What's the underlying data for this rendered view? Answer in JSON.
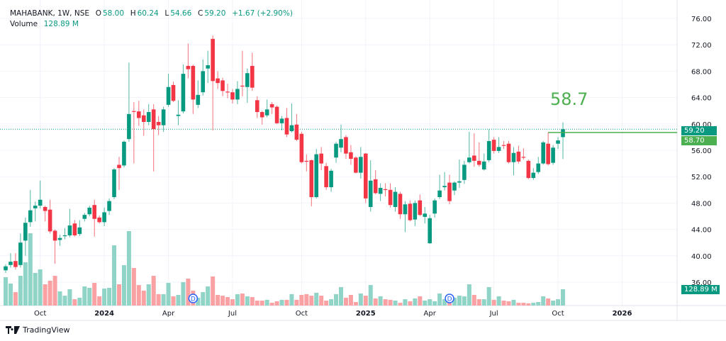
{
  "legend": {
    "symbol": "MAHABANK, 1W, NSE",
    "open_label": "O",
    "open": "58.00",
    "high_label": "H",
    "high": "60.24",
    "low_label": "L",
    "low": "54.66",
    "close_label": "C",
    "close": "59.20",
    "change": "+1.67 (+2.90%)",
    "volume_label": "Volume",
    "volume": "128.89 M"
  },
  "annotation_text": "58.7",
  "price_tags": {
    "last": "59.20",
    "line": "58.70",
    "volume": "128.89 M"
  },
  "dividend_marker": "D",
  "brand": "TradingView",
  "colors": {
    "up": "#089981",
    "down": "#f23645",
    "up_vol": "#8fd4c6",
    "down_vol": "#faa1a4",
    "line": "#4caf50",
    "grid": "#f0f3fa",
    "text": "#131722"
  },
  "chart_data": {
    "type": "candlestick",
    "title": "MAHABANK, 1W, NSE",
    "ylim": [
      36,
      76
    ],
    "yticks": [
      "36.00",
      "40.00",
      "44.00",
      "48.00",
      "52.00",
      "56.00",
      "60.00",
      "64.00",
      "68.00",
      "72.00",
      "76.00"
    ],
    "xticks": [
      {
        "label": "Oct",
        "week": 7,
        "bold": false
      },
      {
        "label": "2024",
        "week": 20,
        "bold": true
      },
      {
        "label": "Apr",
        "week": 33,
        "bold": false
      },
      {
        "label": "Jul",
        "week": 46,
        "bold": false
      },
      {
        "label": "Oct",
        "week": 60,
        "bold": false
      },
      {
        "label": "2025",
        "week": 73,
        "bold": true
      },
      {
        "label": "Apr",
        "week": 86,
        "bold": false
      },
      {
        "label": "Jul",
        "week": 99,
        "bold": false
      },
      {
        "label": "Oct",
        "week": 112,
        "bold": false
      },
      {
        "label": "2026",
        "week": 125,
        "bold": true
      }
    ],
    "total_weeks": 137,
    "horizontal_line": {
      "value": 58.7,
      "from_week": 110
    },
    "last_price": 59.2,
    "dividends_weeks": [
      38,
      90
    ],
    "ohlc": [
      [
        37.8,
        38.7,
        37.4,
        38.4
      ],
      [
        38.6,
        40.4,
        38.2,
        39.1
      ],
      [
        39.2,
        40.4,
        37.9,
        38.3
      ],
      [
        38.6,
        43.4,
        38.2,
        42.0
      ],
      [
        42.3,
        45.8,
        40.0,
        45.0
      ],
      [
        45.1,
        50.0,
        44.4,
        46.9
      ],
      [
        47.2,
        48.2,
        45.2,
        47.6
      ],
      [
        47.6,
        51.4,
        47.2,
        48.5
      ],
      [
        47.4,
        47.6,
        45.2,
        46.8
      ],
      [
        47.0,
        48.5,
        43.4,
        43.7
      ],
      [
        43.8,
        44.0,
        38.8,
        42.3
      ],
      [
        42.4,
        43.2,
        41.5,
        42.7
      ],
      [
        43.1,
        44.2,
        42.5,
        43.1
      ],
      [
        43.1,
        47.1,
        42.8,
        44.6
      ],
      [
        44.9,
        45.4,
        42.9,
        43.1
      ],
      [
        43.3,
        45.4,
        43.0,
        44.3
      ],
      [
        45.6,
        46.5,
        45.2,
        46.2
      ],
      [
        46.3,
        47.6,
        46.0,
        47.3
      ],
      [
        47.7,
        48.5,
        42.9,
        45.6
      ],
      [
        45.8,
        46.1,
        44.9,
        45.1
      ],
      [
        45.1,
        47.3,
        44.5,
        46.6
      ],
      [
        46.8,
        48.7,
        46.2,
        48.3
      ],
      [
        48.9,
        53.3,
        48.6,
        53.1
      ],
      [
        53.8,
        55.0,
        50.0,
        53.3
      ],
      [
        53.7,
        57.5,
        53.4,
        57.3
      ],
      [
        57.7,
        69.3,
        57.3,
        61.5
      ],
      [
        61.95,
        63.3,
        54.0,
        61.9
      ],
      [
        61.9,
        63.5,
        59.7,
        60.9
      ],
      [
        61.3,
        62.2,
        58.2,
        60.3
      ],
      [
        60.3,
        63.0,
        59.8,
        61.8
      ],
      [
        62.2,
        63.0,
        52.8,
        59.2
      ],
      [
        60.3,
        61.2,
        58.3,
        59.8
      ],
      [
        59.8,
        62.6,
        58.8,
        62.2
      ],
      [
        62.9,
        67.6,
        62.6,
        65.6
      ],
      [
        65.9,
        66.4,
        63.3,
        63.5
      ],
      [
        61.2,
        63.6,
        59.8,
        61.4
      ],
      [
        61.9,
        69.0,
        61.6,
        67.6
      ],
      [
        68.8,
        72.2,
        66.9,
        68.3
      ],
      [
        68.8,
        69.0,
        61.5,
        63.7
      ],
      [
        62.9,
        66.6,
        62.4,
        64.4
      ],
      [
        64.8,
        69.8,
        64.3,
        68.0
      ],
      [
        68.4,
        71.1,
        66.2,
        68.9
      ],
      [
        72.9,
        73.4,
        59.0,
        66.5
      ],
      [
        66.9,
        68.0,
        65.3,
        66.2
      ],
      [
        66.6,
        67.0,
        64.2,
        65.0
      ],
      [
        64.9,
        66.1,
        63.9,
        64.8
      ],
      [
        64.8,
        65.3,
        63.1,
        63.7
      ],
      [
        63.7,
        66.5,
        63.0,
        65.3
      ],
      [
        65.8,
        71.1,
        64.2,
        65.7
      ],
      [
        65.6,
        68.4,
        63.2,
        67.7
      ],
      [
        68.8,
        70.8,
        65.0,
        65.5
      ],
      [
        63.6,
        64.2,
        60.9,
        61.8
      ],
      [
        61.8,
        62.0,
        59.9,
        61.0
      ],
      [
        61.3,
        63.7,
        61.0,
        62.2
      ],
      [
        63.0,
        63.3,
        61.5,
        62.5
      ],
      [
        62.6,
        62.8,
        60.0,
        60.1
      ],
      [
        60.1,
        61.2,
        59.0,
        60.8
      ],
      [
        60.9,
        62.4,
        58.0,
        58.4
      ],
      [
        58.9,
        63.1,
        58.7,
        59.8
      ],
      [
        59.9,
        61.5,
        57.4,
        57.6
      ],
      [
        58.5,
        58.8,
        54.0,
        54.2
      ],
      [
        54.4,
        55.4,
        52.8,
        54.3
      ],
      [
        54.5,
        54.6,
        47.5,
        48.9
      ],
      [
        48.9,
        56.2,
        48.7,
        55.4
      ],
      [
        55.5,
        56.5,
        53.0,
        54.0
      ],
      [
        53.6,
        54.1,
        50.0,
        50.4
      ],
      [
        50.4,
        53.2,
        49.7,
        52.9
      ],
      [
        54.9,
        57.3,
        54.1,
        57.0
      ],
      [
        56.4,
        59.9,
        55.7,
        57.7
      ],
      [
        58.0,
        58.3,
        54.7,
        55.5
      ],
      [
        55.7,
        56.8,
        53.8,
        54.7
      ],
      [
        54.9,
        55.1,
        52.5,
        52.6
      ],
      [
        52.6,
        56.5,
        51.7,
        55.0
      ],
      [
        55.5,
        55.6,
        48.0,
        48.7
      ],
      [
        47.4,
        54.5,
        46.7,
        51.4
      ],
      [
        51.6,
        53.0,
        49.3,
        49.5
      ],
      [
        49.4,
        51.0,
        48.3,
        50.3
      ],
      [
        50.1,
        51.0,
        49.0,
        50.0
      ],
      [
        50.0,
        51.0,
        47.3,
        47.7
      ],
      [
        47.4,
        50.4,
        46.7,
        49.7
      ],
      [
        49.4,
        49.7,
        45.6,
        46.3
      ],
      [
        46.3,
        48.3,
        43.6,
        47.8
      ],
      [
        47.9,
        48.4,
        45.2,
        45.4
      ],
      [
        45.5,
        48.4,
        44.5,
        48.0
      ],
      [
        48.4,
        49.3,
        46.0,
        46.2
      ],
      [
        45.9,
        47.4,
        44.9,
        46.4
      ],
      [
        41.9,
        46.2,
        41.8,
        45.7
      ],
      [
        46.4,
        48.7,
        45.8,
        48.4
      ],
      [
        48.9,
        52.3,
        48.6,
        49.9
      ],
      [
        50.4,
        52.7,
        49.9,
        50.6
      ],
      [
        51.1,
        52.3,
        47.8,
        48.3
      ],
      [
        49.9,
        51.3,
        49.2,
        51.1
      ],
      [
        51.1,
        54.6,
        50.3,
        51.3
      ],
      [
        51.5,
        54.4,
        50.9,
        53.8
      ],
      [
        54.2,
        58.8,
        54.0,
        54.9
      ],
      [
        55.2,
        58.6,
        53.5,
        54.4
      ],
      [
        54.4,
        57.2,
        53.5,
        53.8
      ],
      [
        53.1,
        55.5,
        52.9,
        54.3
      ],
      [
        54.5,
        59.2,
        54.2,
        57.4
      ],
      [
        57.6,
        58.0,
        55.5,
        55.9
      ],
      [
        55.9,
        58.0,
        55.6,
        56.5
      ],
      [
        56.8,
        57.4,
        56.2,
        56.7
      ],
      [
        57.0,
        57.4,
        54.0,
        54.2
      ],
      [
        54.2,
        56.5,
        52.2,
        55.6
      ],
      [
        55.8,
        56.7,
        54.0,
        54.3
      ],
      [
        55.0,
        56.3,
        54.6,
        54.9
      ],
      [
        54.4,
        54.6,
        51.6,
        51.8
      ],
      [
        51.8,
        53.3,
        51.5,
        52.6
      ],
      [
        52.7,
        55.0,
        52.4,
        54.0
      ],
      [
        54.0,
        57.4,
        53.8,
        57.2
      ],
      [
        57.0,
        58.7,
        53.7,
        53.9
      ],
      [
        54.1,
        56.8,
        53.8,
        56.4
      ],
      [
        57.0,
        58.0,
        56.2,
        57.5
      ],
      [
        58.0,
        60.24,
        54.66,
        59.2
      ]
    ],
    "volume_millions": [
      224,
      174,
      106,
      235,
      342,
      571,
      258,
      286,
      168,
      196,
      235,
      112,
      78,
      129,
      50,
      62,
      151,
      140,
      179,
      73,
      134,
      140,
      476,
      168,
      319,
      588,
      297,
      162,
      118,
      168,
      235,
      90,
      90,
      179,
      73,
      84,
      185,
      213,
      118,
      62,
      106,
      151,
      230,
      84,
      78,
      67,
      50,
      90,
      95,
      73,
      67,
      39,
      39,
      45,
      22,
      34,
      45,
      45,
      90,
      45,
      84,
      90,
      78,
      101,
      78,
      39,
      50,
      90,
      146,
      62,
      84,
      28,
      95,
      78,
      162,
      56,
      73,
      50,
      45,
      39,
      22,
      50,
      34,
      56,
      73,
      39,
      50,
      34,
      95,
      50,
      22,
      62,
      78,
      73,
      168,
      84,
      50,
      50,
      146,
      45,
      73,
      39,
      34,
      45,
      22,
      22,
      17,
      22,
      28,
      73,
      56,
      39,
      50,
      128.89
    ]
  }
}
